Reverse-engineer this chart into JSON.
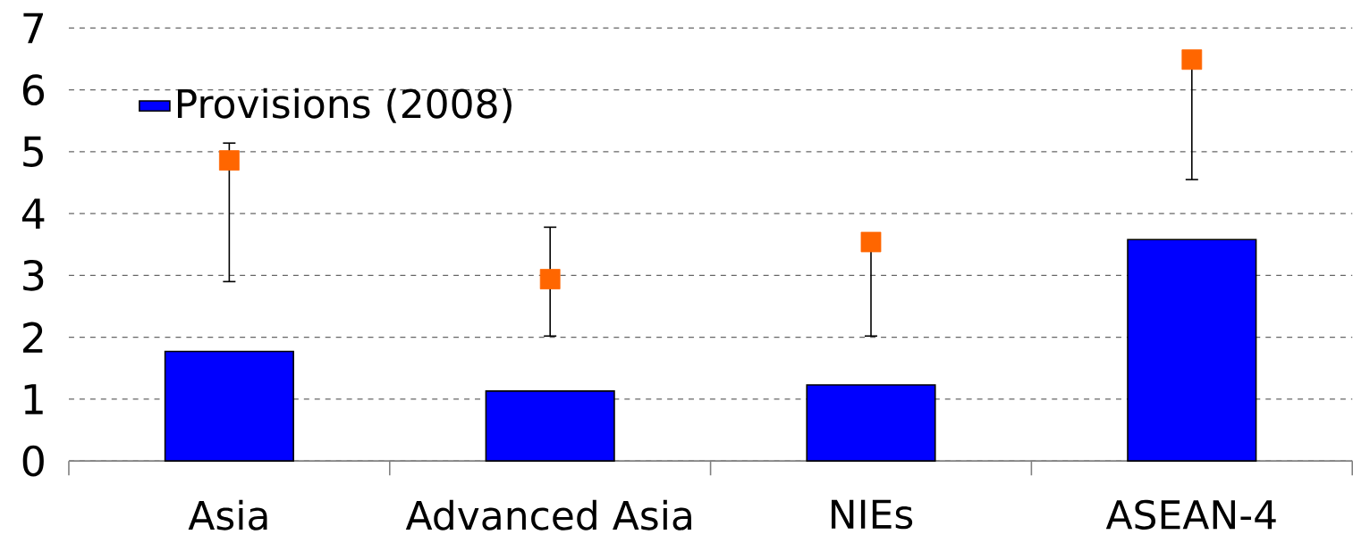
{
  "chart_data": {
    "type": "bar",
    "categories": [
      "Asia",
      "Advanced Asia",
      "NIEs",
      "ASEAN-4"
    ],
    "series": [
      {
        "name": "Provisions (2008)",
        "color": "#0000ff",
        "values": [
          1.77,
          1.13,
          1.23,
          3.58
        ]
      },
      {
        "type": "scatter",
        "color": "#ff6600",
        "marker": "square",
        "values": [
          4.86,
          2.94,
          3.54,
          6.49
        ],
        "errors": [
          [
            2.9,
            5.14
          ],
          [
            2.02,
            3.78
          ],
          [
            2.02,
            3.54
          ],
          [
            4.55,
            6.49
          ]
        ]
      }
    ],
    "ylim": [
      0,
      7
    ],
    "yticks": [
      0,
      1,
      2,
      3,
      4,
      5,
      6,
      7
    ],
    "grid": "y",
    "legend": "top left"
  }
}
